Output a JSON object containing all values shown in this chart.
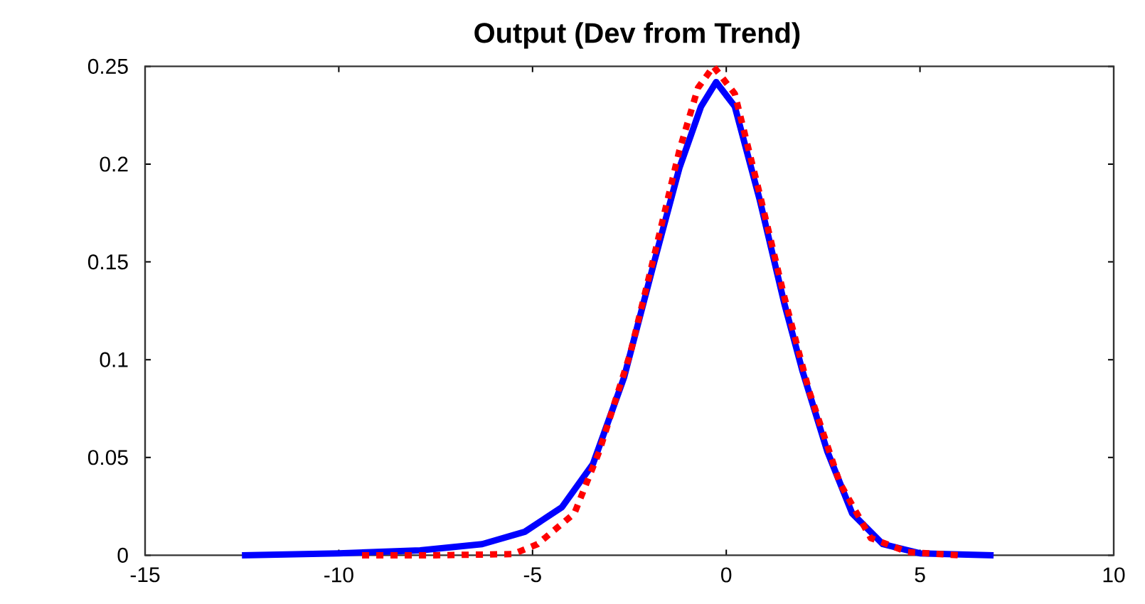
{
  "chart_data": {
    "type": "line",
    "title": "Output (Dev from Trend)",
    "xlim": [
      -15,
      10
    ],
    "xticks": [
      -15,
      -10,
      -5,
      0,
      5,
      10
    ],
    "ylim": [
      0,
      0.25
    ],
    "yticks": [
      0,
      0.05,
      0.1,
      0.15,
      0.2,
      0.25
    ],
    "marker": "none",
    "series": [
      {
        "color": "#0000ff",
        "line_style": "solid",
        "x": [
          -12.5,
          -10.0,
          -7.9,
          -6.3,
          -5.2,
          -4.24,
          -3.44,
          -2.64,
          -1.85,
          -1.21,
          -0.65,
          -0.26,
          0.22,
          0.86,
          1.5,
          1.97,
          2.61,
          3.25,
          4.04,
          5.0,
          6.9
        ],
        "values": [
          0,
          0.001,
          0.0025,
          0.0057,
          0.012,
          0.0246,
          0.0467,
          0.0908,
          0.1507,
          0.198,
          0.2295,
          0.242,
          0.2295,
          0.182,
          0.1286,
          0.094,
          0.053,
          0.0214,
          0.0057,
          0.001,
          0
        ]
      },
      {
        "color": "#ff0000",
        "line_style": "dotted",
        "x": [
          -9.4,
          -7.5,
          -5.5,
          -4.87,
          -3.92,
          -3.28,
          -2.48,
          -1.85,
          -1.21,
          -0.73,
          -0.33,
          0.22,
          0.86,
          1.5,
          2.13,
          2.93,
          3.73,
          4.69,
          6.0
        ],
        "values": [
          0,
          0,
          0.0006,
          0.0057,
          0.0214,
          0.053,
          0.103,
          0.154,
          0.207,
          0.239,
          0.25,
          0.236,
          0.185,
          0.132,
          0.0845,
          0.037,
          0.0088,
          0.0016,
          0
        ]
      }
    ]
  }
}
